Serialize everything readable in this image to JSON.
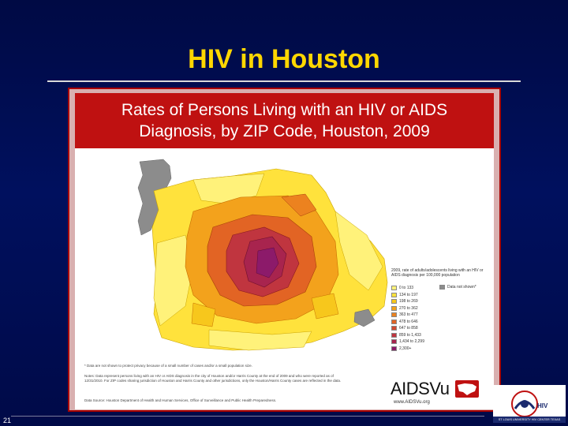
{
  "slide": {
    "title": "HIV in Houston",
    "number": "21"
  },
  "map": {
    "title_line1": "Rates of Persons Living with an HIV or AIDS",
    "title_line2": "Diagnosis, by ZIP Code, Houston, 2009",
    "legend_title": "2009, rate of adults/adolescents living with an HIV or AIDS diagnosis per 100,000 population",
    "legend": [
      {
        "label": "0 to 133",
        "color": "#fff27a"
      },
      {
        "label": "134 to 197",
        "color": "#ffe23c"
      },
      {
        "label": "198 to 269",
        "color": "#f7c71c"
      },
      {
        "label": "270 to 362",
        "color": "#f3a21c"
      },
      {
        "label": "363 to 477",
        "color": "#ec821f"
      },
      {
        "label": "478 to 646",
        "color": "#e26424"
      },
      {
        "label": "647 to 858",
        "color": "#d24a30"
      },
      {
        "label": "859 to 1,433",
        "color": "#c0353f"
      },
      {
        "label": "1,434 to 2,299",
        "color": "#a8244e"
      },
      {
        "label": "2,300+",
        "color": "#8c1a6a"
      }
    ],
    "suppressed_label": "Data not shown*",
    "suppressed_color": "#8c8c8c",
    "footnote_suppressed": "* Data are not shown to protect privacy because of a small number of cases and/or a small population size.",
    "footnote_notes": "Notes: Data represent persons living with an HIV or AIDS diagnosis in the city of Houston and/or Harris County at the end of 2009 and who were reported as of 12/31/2010. For ZIP codes sharing jurisdiction of Houston and Harris County and other jurisdictions, only the Houston/Harris County cases are reflected in the data.",
    "footnote_source": "Data Source: Houston Department of Health and Human Services, Office of Surveillance and Public Health Preparedness.",
    "brand": "AIDSVu",
    "brand_url": "www.AIDSVu.org"
  },
  "badge": {
    "text": "HIV",
    "caption": "ST LOUIS UNIVERSITY HIV CENTER TEXAS"
  }
}
